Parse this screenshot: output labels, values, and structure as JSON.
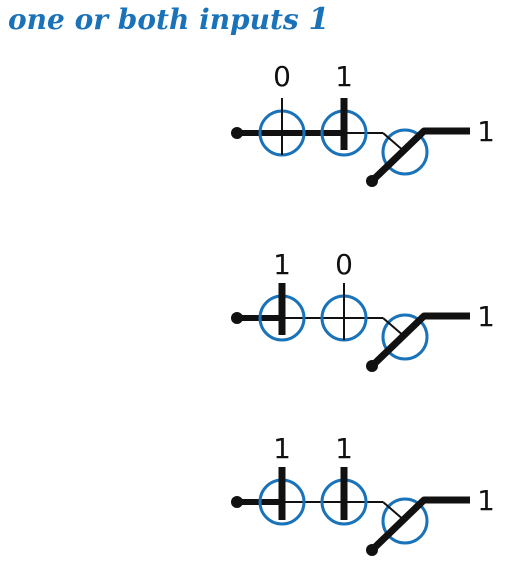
{
  "title": {
    "text": "one or both inputs ",
    "emphasis": "1"
  },
  "colors": {
    "title": "#1a72b8",
    "ring": "#1a72b8",
    "wire": "#111111"
  },
  "circuits": [
    {
      "inputs": [
        "0",
        "1"
      ],
      "output": "1"
    },
    {
      "inputs": [
        "1",
        "0"
      ],
      "output": "1"
    },
    {
      "inputs": [
        "1",
        "1"
      ],
      "output": "1"
    }
  ]
}
